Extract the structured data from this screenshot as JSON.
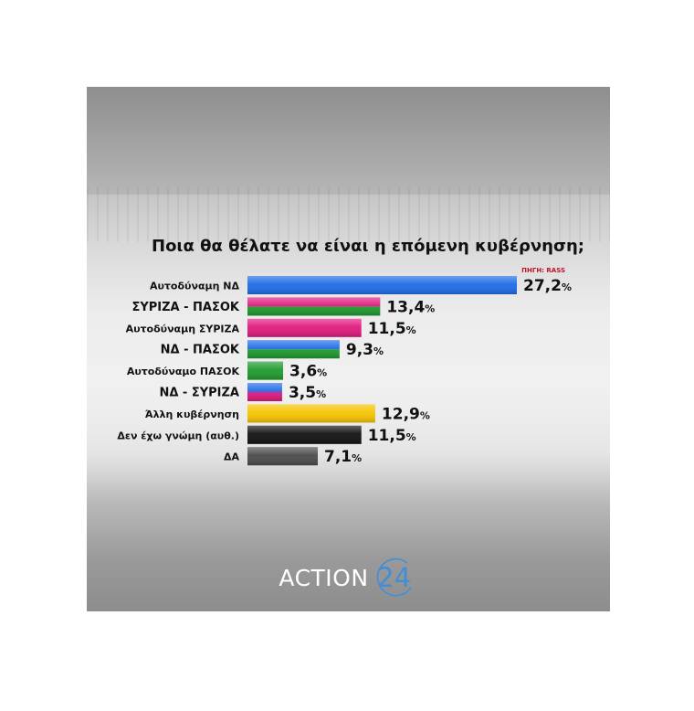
{
  "chart_data": {
    "type": "bar",
    "orientation": "horizontal",
    "title": "Ποια θα θέλατε να είναι η επόμενη κυβέρνηση;",
    "source": "ΠΗΓΗ: RASS",
    "unit": "%",
    "categories": [
      "Αυτοδύναμη ΝΔ",
      "ΣΥΡΙΖΑ - ΠΑΣΟΚ",
      "Αυτοδύναμη ΣΥΡΙΖΑ",
      "ΝΔ - ΠΑΣΟΚ",
      "Αυτοδύναμο ΠΑΣΟΚ",
      "ΝΔ - ΣΥΡΙΖΑ",
      "Άλλη κυβέρνηση",
      "Δεν έχω γνώμη (αυθ.)",
      "ΔΑ"
    ],
    "values": [
      27.2,
      13.4,
      11.5,
      9.3,
      3.6,
      3.5,
      12.9,
      11.5,
      7.1
    ],
    "value_labels": [
      "27,2",
      "13,4",
      "11,5",
      "9,3",
      "3,6",
      "3,5",
      "12,9",
      "11,5",
      "7,1"
    ],
    "bar_colors": [
      [
        "#1e6be6"
      ],
      [
        "#e0197d",
        "#1f9a2e"
      ],
      [
        "#e0197d"
      ],
      [
        "#1e6be6",
        "#1f9a2e"
      ],
      [
        "#1f9a2e"
      ],
      [
        "#1e6be6",
        "#e0197d"
      ],
      [
        "#f5c400"
      ],
      [
        "#111111"
      ],
      [
        "#4a4a4a"
      ]
    ],
    "xlim": [
      0,
      27.2
    ]
  },
  "logo": {
    "word": "ACTION",
    "number": "24"
  }
}
